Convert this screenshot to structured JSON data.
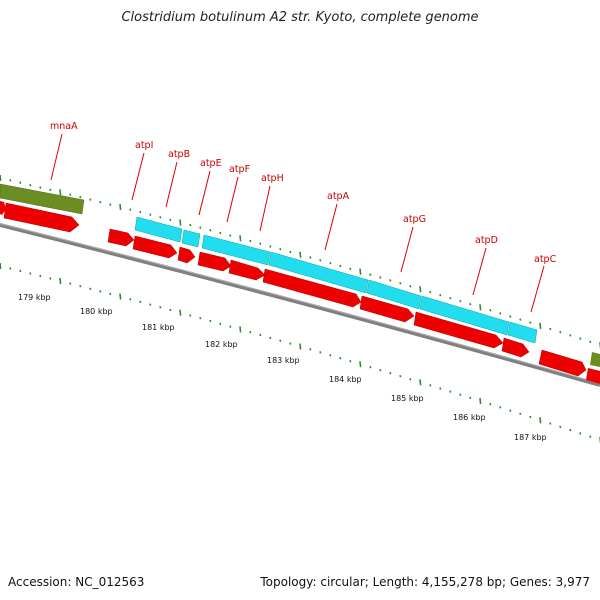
{
  "title": "Clostridium botulinum A2 str. Kyoto, complete genome",
  "footer": {
    "accession": "Accession: NC_012563",
    "summary": "Topology: circular; Length: 4,155,278 bp; Genes: 3,977"
  },
  "colors": {
    "red_gene": "#ee0000",
    "cyan_feature": "#22ddee",
    "olive_feature": "#6b8e23",
    "backbone": "#808080",
    "ticks": "#2e8b2e",
    "labels": "#cc0000"
  },
  "gene_labels": [
    "mnaA",
    "atpI",
    "atpB",
    "atpE",
    "atpF",
    "atpH",
    "atpA",
    "atpG",
    "atpD",
    "atpC"
  ],
  "kbp_labels": [
    "179 kbp",
    "180 kbp",
    "181 kbp",
    "182 kbp",
    "183 kbp",
    "184 kbp",
    "185 kbp",
    "186 kbp",
    "187 kbp"
  ]
}
